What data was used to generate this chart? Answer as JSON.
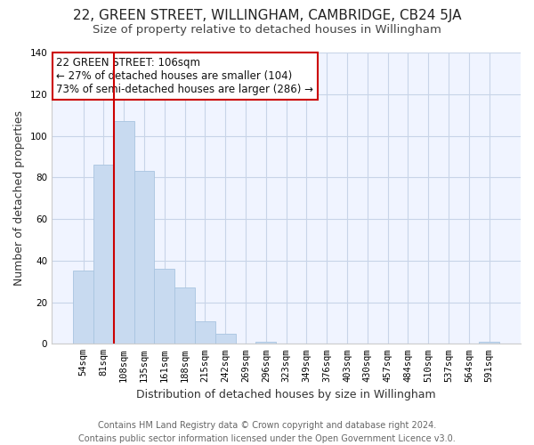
{
  "title": "22, GREEN STREET, WILLINGHAM, CAMBRIDGE, CB24 5JA",
  "subtitle": "Size of property relative to detached houses in Willingham",
  "xlabel": "Distribution of detached houses by size in Willingham",
  "ylabel": "Number of detached properties",
  "footer_line1": "Contains HM Land Registry data © Crown copyright and database right 2024.",
  "footer_line2": "Contains public sector information licensed under the Open Government Licence v3.0.",
  "bar_labels": [
    "54sqm",
    "81sqm",
    "108sqm",
    "135sqm",
    "161sqm",
    "188sqm",
    "215sqm",
    "242sqm",
    "269sqm",
    "296sqm",
    "323sqm",
    "349sqm",
    "376sqm",
    "403sqm",
    "430sqm",
    "457sqm",
    "484sqm",
    "510sqm",
    "537sqm",
    "564sqm",
    "591sqm"
  ],
  "bar_heights": [
    35,
    86,
    107,
    83,
    36,
    27,
    11,
    5,
    0,
    1,
    0,
    0,
    0,
    0,
    0,
    0,
    0,
    0,
    0,
    0,
    1
  ],
  "bar_color": "#c8daf0",
  "bar_edge_color": "#a8c4e0",
  "highlight_line_color": "#cc0000",
  "annotation_box_text": "22 GREEN STREET: 106sqm\n← 27% of detached houses are smaller (104)\n73% of semi-detached houses are larger (286) →",
  "annotation_box_facecolor": "white",
  "annotation_box_edgecolor": "#cc0000",
  "ylim": [
    0,
    140
  ],
  "yticks": [
    0,
    20,
    40,
    60,
    80,
    100,
    120,
    140
  ],
  "background_color": "#ffffff",
  "plot_bg_color": "#f0f4ff",
  "grid_color": "#c8d4e8",
  "title_fontsize": 11,
  "subtitle_fontsize": 9.5,
  "axis_label_fontsize": 9,
  "tick_fontsize": 7.5,
  "footer_fontsize": 7,
  "annotation_fontsize": 8.5,
  "highlight_bar_index": 2
}
